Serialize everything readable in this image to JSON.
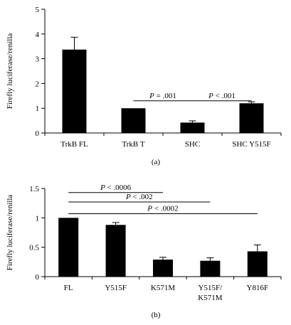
{
  "chart_data": [
    {
      "type": "bar",
      "panel_label": "(a)",
      "ylabel": "Firefly luciferase/renilla",
      "ylim": [
        0,
        5
      ],
      "yticks": [
        0,
        1,
        2,
        3,
        4,
        5
      ],
      "ytick_labels": [
        "0",
        "1",
        "2",
        "3",
        "4",
        "5"
      ],
      "categories": [
        "TrkB FL",
        "TrkB T",
        "SHC",
        "SHC Y515F"
      ],
      "values": [
        3.37,
        1.0,
        0.42,
        1.2
      ],
      "errors": [
        0.5,
        0.0,
        0.07,
        0.06
      ],
      "bar_color": "#000000",
      "grid": false,
      "annotations": [
        {
          "p_label": "P",
          "text": " = .001",
          "from": 1,
          "to": 2,
          "y": 1.3
        },
        {
          "p_label": "P",
          "text": " < .001",
          "from": 2,
          "to": 3,
          "y": 1.3
        }
      ]
    },
    {
      "type": "bar",
      "panel_label": "(b)",
      "ylabel": "Firefly luciferase/renilla",
      "ylim": [
        0,
        1.5
      ],
      "yticks": [
        0,
        0.5,
        1,
        1.5
      ],
      "ytick_labels": [
        "0",
        "0.5",
        "1",
        "1.5"
      ],
      "categories": [
        "FL",
        "Y515F",
        "K571M",
        "Y515F/\nK571M",
        "Y816F"
      ],
      "values": [
        1.0,
        0.88,
        0.29,
        0.27,
        0.43
      ],
      "errors": [
        0.0,
        0.04,
        0.04,
        0.05,
        0.11
      ],
      "bar_color": "#000000",
      "grid": false,
      "annotations": [
        {
          "p_label": "P",
          "text": " < .0006",
          "from": 0,
          "to": 2,
          "y": 1.43
        },
        {
          "p_label": "P",
          "text": " < .002",
          "from": 0,
          "to": 3,
          "y": 1.27
        },
        {
          "p_label": "P",
          "text": " < .0002",
          "from": 0,
          "to": 4,
          "y": 1.07
        }
      ]
    }
  ]
}
